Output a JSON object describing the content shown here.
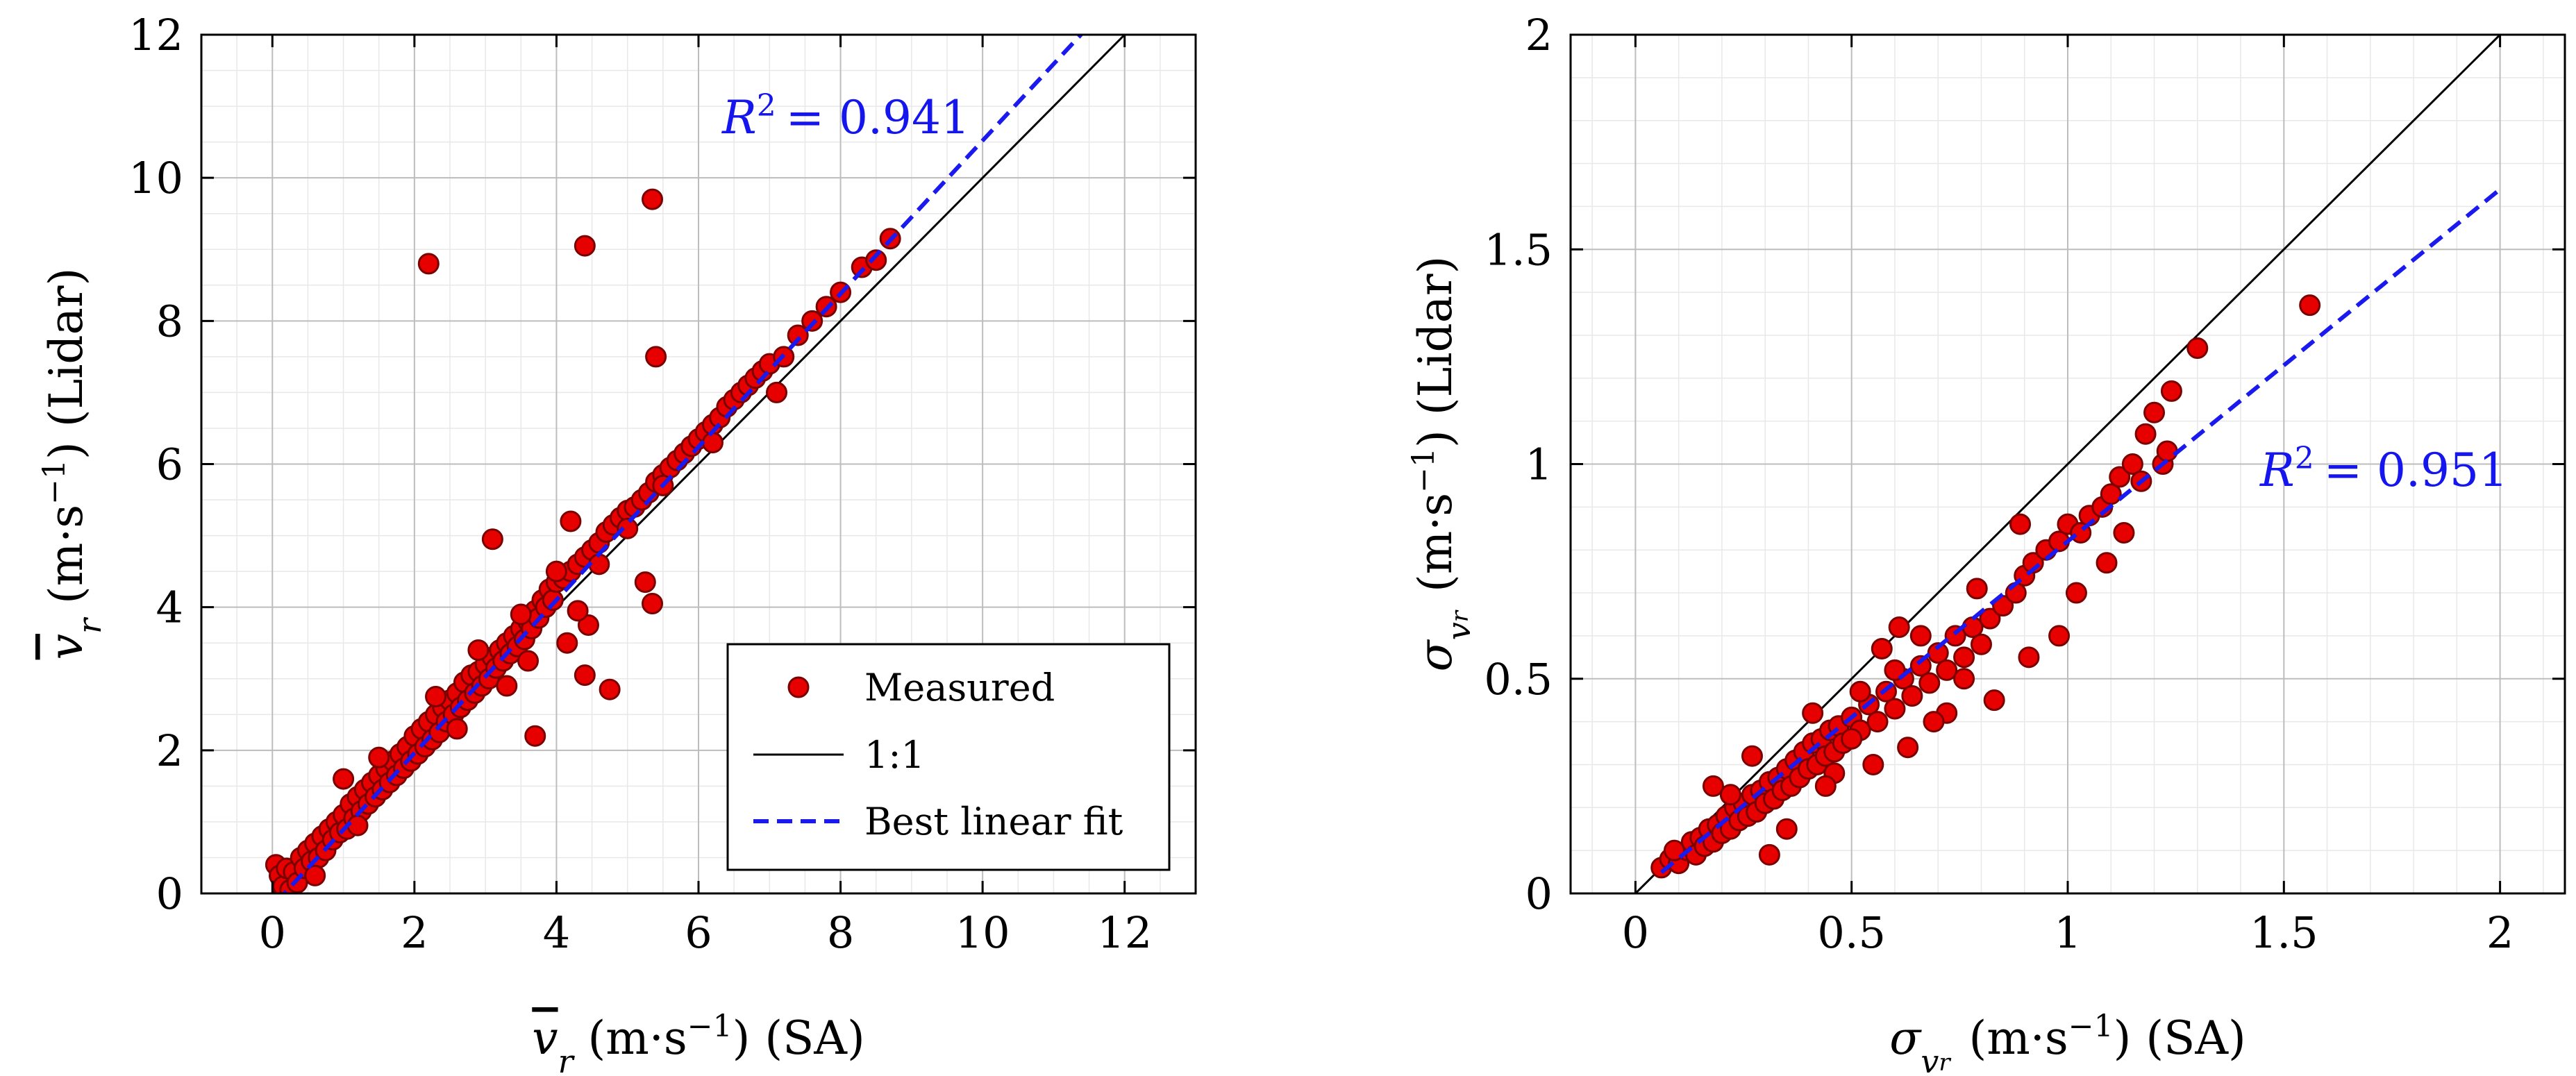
{
  "colors": {
    "points_fill": "#e60000",
    "points_stroke": "#7a0000",
    "fit_line": "#1a1aee",
    "identity_line": "#000000",
    "grid_major": "#bdbdbd",
    "grid_minor": "#e8e8e8",
    "axis": "#000000"
  },
  "legend": {
    "measured": "Measured",
    "identity": "1:1",
    "fit": "Best linear fit"
  },
  "chart_data": [
    {
      "type": "scatter",
      "title": "",
      "xlabel": {
        "var": "v",
        "sub": "r",
        "overline": true,
        "unit": " (m·s",
        "exp": "−1",
        "tail": ") (SA)"
      },
      "ylabel": {
        "var": "v",
        "sub": "r",
        "overline": true,
        "unit": " (m·s",
        "exp": "−1",
        "tail": ") (Lidar)"
      },
      "xlabel_text": "v_r (m·s−1) (SA)",
      "ylabel_text": "v_r (m·s−1) (Lidar)",
      "xlim": [
        -1,
        13
      ],
      "ylim": [
        0,
        12
      ],
      "xticks": [
        0,
        2,
        4,
        6,
        8,
        10,
        12
      ],
      "yticks": [
        0,
        2,
        4,
        6,
        8,
        10,
        12
      ],
      "xtick_labels": [
        "0",
        "2",
        "4",
        "6",
        "8",
        "10",
        "12"
      ],
      "ytick_labels": [
        "0",
        "2",
        "4",
        "6",
        "8",
        "10",
        "12"
      ],
      "minor_step": 0.5,
      "r2_label": "R² = 0.941",
      "r2_prefix": "R",
      "r2_sup": "2",
      "r2_value": "= 0.941",
      "r2_at": [
        7.0,
        10.8
      ],
      "identity": [
        [
          0,
          0
        ],
        [
          12,
          12
        ]
      ],
      "fit": {
        "slope": 1.07,
        "intercept": -0.18,
        "x_range": [
          0.05,
          11.5
        ]
      },
      "legend_position": "bottom-right",
      "points": [
        [
          0.05,
          0.4
        ],
        [
          0.1,
          0.25
        ],
        [
          0.15,
          0.1
        ],
        [
          0.2,
          0.35
        ],
        [
          0.25,
          0.05
        ],
        [
          0.3,
          0.3
        ],
        [
          0.35,
          0.15
        ],
        [
          0.4,
          0.5
        ],
        [
          0.45,
          0.35
        ],
        [
          0.5,
          0.6
        ],
        [
          0.55,
          0.45
        ],
        [
          0.6,
          0.7
        ],
        [
          0.65,
          0.5
        ],
        [
          0.7,
          0.8
        ],
        [
          0.75,
          0.6
        ],
        [
          0.8,
          0.9
        ],
        [
          0.85,
          0.75
        ],
        [
          0.9,
          1.0
        ],
        [
          0.95,
          0.85
        ],
        [
          1.0,
          1.1
        ],
        [
          1.05,
          0.9
        ],
        [
          1.1,
          1.25
        ],
        [
          1.15,
          1.05
        ],
        [
          1.2,
          1.35
        ],
        [
          1.25,
          1.15
        ],
        [
          1.3,
          1.45
        ],
        [
          1.35,
          1.25
        ],
        [
          1.4,
          1.55
        ],
        [
          1.45,
          1.35
        ],
        [
          1.5,
          1.65
        ],
        [
          1.55,
          1.45
        ],
        [
          1.6,
          1.75
        ],
        [
          1.65,
          1.55
        ],
        [
          1.7,
          1.85
        ],
        [
          1.75,
          1.65
        ],
        [
          1.8,
          1.95
        ],
        [
          1.85,
          1.75
        ],
        [
          1.9,
          2.05
        ],
        [
          1.95,
          1.85
        ],
        [
          2.0,
          2.2
        ],
        [
          2.05,
          1.95
        ],
        [
          2.1,
          2.3
        ],
        [
          2.15,
          2.05
        ],
        [
          2.2,
          2.4
        ],
        [
          2.25,
          2.15
        ],
        [
          2.3,
          2.5
        ],
        [
          2.35,
          2.25
        ],
        [
          2.4,
          2.6
        ],
        [
          2.45,
          2.4
        ],
        [
          2.5,
          2.7
        ],
        [
          2.55,
          2.5
        ],
        [
          2.6,
          2.8
        ],
        [
          2.65,
          2.6
        ],
        [
          2.7,
          2.95
        ],
        [
          2.75,
          2.7
        ],
        [
          2.8,
          3.05
        ],
        [
          2.85,
          2.8
        ],
        [
          2.9,
          3.1
        ],
        [
          2.95,
          2.9
        ],
        [
          3.0,
          3.2
        ],
        [
          3.05,
          3.0
        ],
        [
          3.1,
          3.3
        ],
        [
          3.15,
          3.15
        ],
        [
          3.2,
          3.4
        ],
        [
          3.25,
          3.25
        ],
        [
          3.3,
          3.5
        ],
        [
          3.35,
          3.35
        ],
        [
          3.4,
          3.6
        ],
        [
          3.45,
          3.45
        ],
        [
          3.5,
          3.7
        ],
        [
          3.55,
          3.55
        ],
        [
          3.6,
          3.8
        ],
        [
          3.65,
          3.7
        ],
        [
          3.7,
          3.95
        ],
        [
          3.75,
          3.85
        ],
        [
          3.8,
          4.1
        ],
        [
          3.85,
          4.0
        ],
        [
          3.9,
          4.25
        ],
        [
          3.95,
          4.1
        ],
        [
          4.0,
          4.35
        ],
        [
          4.1,
          4.4
        ],
        [
          4.2,
          4.5
        ],
        [
          4.3,
          4.6
        ],
        [
          4.4,
          4.7
        ],
        [
          4.5,
          4.8
        ],
        [
          4.6,
          4.9
        ],
        [
          4.7,
          5.05
        ],
        [
          4.8,
          5.15
        ],
        [
          4.9,
          5.25
        ],
        [
          5.0,
          5.35
        ],
        [
          5.1,
          5.4
        ],
        [
          5.2,
          5.5
        ],
        [
          5.3,
          5.6
        ],
        [
          5.4,
          5.75
        ],
        [
          5.5,
          5.85
        ],
        [
          5.6,
          5.95
        ],
        [
          5.7,
          6.05
        ],
        [
          5.8,
          6.15
        ],
        [
          5.9,
          6.25
        ],
        [
          6.0,
          6.35
        ],
        [
          6.1,
          6.45
        ],
        [
          6.2,
          6.55
        ],
        [
          6.3,
          6.65
        ],
        [
          6.4,
          6.8
        ],
        [
          6.5,
          6.9
        ],
        [
          6.6,
          7.0
        ],
        [
          6.7,
          7.1
        ],
        [
          6.8,
          7.2
        ],
        [
          6.9,
          7.3
        ],
        [
          7.0,
          7.4
        ],
        [
          7.2,
          7.5
        ],
        [
          7.4,
          7.8
        ],
        [
          7.6,
          8.0
        ],
        [
          7.8,
          8.2
        ],
        [
          8.0,
          8.4
        ],
        [
          8.3,
          8.75
        ],
        [
          8.5,
          8.85
        ],
        [
          8.7,
          9.15
        ],
        [
          2.2,
          8.8
        ],
        [
          4.4,
          9.05
        ],
        [
          5.35,
          9.7
        ],
        [
          5.4,
          7.5
        ],
        [
          3.1,
          4.95
        ],
        [
          4.2,
          5.2
        ],
        [
          3.7,
          2.2
        ],
        [
          4.75,
          2.85
        ],
        [
          4.4,
          3.05
        ],
        [
          4.45,
          3.75
        ],
        [
          4.15,
          3.5
        ],
        [
          5.25,
          4.35
        ],
        [
          5.35,
          4.05
        ],
        [
          7.1,
          7.0
        ],
        [
          0.6,
          0.25
        ],
        [
          1.2,
          0.95
        ],
        [
          2.6,
          2.3
        ],
        [
          3.3,
          2.9
        ],
        [
          3.6,
          3.25
        ],
        [
          4.3,
          3.95
        ],
        [
          1.0,
          1.6
        ],
        [
          1.5,
          1.9
        ],
        [
          2.3,
          2.75
        ],
        [
          2.9,
          3.4
        ],
        [
          3.5,
          3.9
        ],
        [
          4.0,
          4.5
        ],
        [
          4.6,
          4.6
        ],
        [
          5.0,
          5.1
        ],
        [
          5.5,
          5.7
        ],
        [
          6.2,
          6.3
        ]
      ]
    },
    {
      "type": "scatter",
      "title": "",
      "xlabel_text": "σ_vr (m·s−1) (SA)",
      "ylabel_text": "σ_vr (m·s−1) (Lidar)",
      "xlim": [
        -0.15,
        2.15
      ],
      "ylim": [
        0,
        2
      ],
      "xticks": [
        0,
        0.5,
        1,
        1.5,
        2
      ],
      "yticks": [
        0,
        0.5,
        1,
        1.5,
        2
      ],
      "xtick_labels": [
        "0",
        "0.5",
        "1",
        "1.5",
        "2"
      ],
      "ytick_labels": [
        "0",
        "0.5",
        "1",
        "1.5",
        "2"
      ],
      "minor_step": 0.1,
      "r2_label": "R² = 0.951",
      "r2_prefix": "R",
      "r2_sup": "2",
      "r2_value": "= 0.951",
      "r2_at": [
        1.45,
        0.97
      ],
      "identity": [
        [
          0,
          0
        ],
        [
          2,
          2
        ]
      ],
      "fit": {
        "slope": 0.82,
        "intercept": -0.0,
        "x_range": [
          0.06,
          2.0
        ]
      },
      "points": [
        [
          0.06,
          0.06
        ],
        [
          0.08,
          0.08
        ],
        [
          0.1,
          0.07
        ],
        [
          0.12,
          0.1
        ],
        [
          0.13,
          0.12
        ],
        [
          0.14,
          0.09
        ],
        [
          0.15,
          0.13
        ],
        [
          0.16,
          0.11
        ],
        [
          0.17,
          0.15
        ],
        [
          0.18,
          0.12
        ],
        [
          0.19,
          0.16
        ],
        [
          0.2,
          0.14
        ],
        [
          0.21,
          0.18
        ],
        [
          0.22,
          0.15
        ],
        [
          0.23,
          0.2
        ],
        [
          0.24,
          0.17
        ],
        [
          0.25,
          0.21
        ],
        [
          0.26,
          0.18
        ],
        [
          0.27,
          0.23
        ],
        [
          0.28,
          0.19
        ],
        [
          0.29,
          0.24
        ],
        [
          0.3,
          0.21
        ],
        [
          0.31,
          0.26
        ],
        [
          0.32,
          0.22
        ],
        [
          0.33,
          0.27
        ],
        [
          0.34,
          0.24
        ],
        [
          0.35,
          0.29
        ],
        [
          0.36,
          0.25
        ],
        [
          0.37,
          0.31
        ],
        [
          0.38,
          0.27
        ],
        [
          0.39,
          0.33
        ],
        [
          0.4,
          0.29
        ],
        [
          0.41,
          0.35
        ],
        [
          0.42,
          0.3
        ],
        [
          0.43,
          0.36
        ],
        [
          0.44,
          0.32
        ],
        [
          0.45,
          0.38
        ],
        [
          0.46,
          0.33
        ],
        [
          0.47,
          0.39
        ],
        [
          0.48,
          0.35
        ],
        [
          0.5,
          0.41
        ],
        [
          0.52,
          0.38
        ],
        [
          0.54,
          0.44
        ],
        [
          0.56,
          0.4
        ],
        [
          0.58,
          0.47
        ],
        [
          0.6,
          0.43
        ],
        [
          0.62,
          0.5
        ],
        [
          0.64,
          0.46
        ],
        [
          0.66,
          0.53
        ],
        [
          0.68,
          0.49
        ],
        [
          0.7,
          0.56
        ],
        [
          0.72,
          0.52
        ],
        [
          0.74,
          0.6
        ],
        [
          0.76,
          0.55
        ],
        [
          0.78,
          0.62
        ],
        [
          0.8,
          0.58
        ],
        [
          0.82,
          0.64
        ],
        [
          0.85,
          0.67
        ],
        [
          0.88,
          0.7
        ],
        [
          0.9,
          0.74
        ],
        [
          0.92,
          0.77
        ],
        [
          0.95,
          0.8
        ],
        [
          0.98,
          0.82
        ],
        [
          1.0,
          0.86
        ],
        [
          1.03,
          0.84
        ],
        [
          1.05,
          0.88
        ],
        [
          1.08,
          0.9
        ],
        [
          1.1,
          0.93
        ],
        [
          1.12,
          0.97
        ],
        [
          1.15,
          1.0
        ],
        [
          1.18,
          1.07
        ],
        [
          1.2,
          1.12
        ],
        [
          1.22,
          1.0
        ],
        [
          1.24,
          1.17
        ],
        [
          1.3,
          1.27
        ],
        [
          1.56,
          1.37
        ],
        [
          0.18,
          0.25
        ],
        [
          0.09,
          0.1
        ],
        [
          0.31,
          0.09
        ],
        [
          0.35,
          0.15
        ],
        [
          0.46,
          0.28
        ],
        [
          0.55,
          0.3
        ],
        [
          0.63,
          0.34
        ],
        [
          0.61,
          0.62
        ],
        [
          0.72,
          0.42
        ],
        [
          0.83,
          0.45
        ],
        [
          0.89,
          0.86
        ],
        [
          0.91,
          0.55
        ],
        [
          0.98,
          0.6
        ],
        [
          1.02,
          0.7
        ],
        [
          1.09,
          0.77
        ],
        [
          1.13,
          0.84
        ],
        [
          1.17,
          0.96
        ],
        [
          1.23,
          1.03
        ],
        [
          0.41,
          0.42
        ],
        [
          0.5,
          0.36
        ],
        [
          0.57,
          0.57
        ],
        [
          0.66,
          0.6
        ],
        [
          0.76,
          0.5
        ],
        [
          0.69,
          0.4
        ],
        [
          0.27,
          0.32
        ],
        [
          0.22,
          0.23
        ],
        [
          0.44,
          0.25
        ],
        [
          0.52,
          0.47
        ],
        [
          0.6,
          0.52
        ],
        [
          0.79,
          0.71
        ]
      ]
    }
  ]
}
